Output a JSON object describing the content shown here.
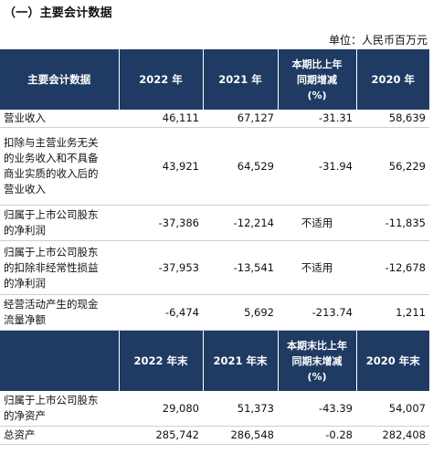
{
  "section_title": "（一）主要会计数据",
  "unit_note": "单位：人民币百万元",
  "header1": {
    "label": "主要会计数据",
    "col1": "2022 年",
    "col2": "2021 年",
    "col3_line1": "本期比上年",
    "col3_line2": "同期增减",
    "col3_line3": "(%)",
    "col4": "2020 年"
  },
  "rows1": [
    {
      "label_lines": [
        "营业收入"
      ],
      "v2022": "46,111",
      "v2021": "67,127",
      "change": "-31.31",
      "v2020": "58,639"
    },
    {
      "label_lines": [
        "扣除与主营业务无关",
        "的业务收入和不具备",
        "商业实质的收入后的",
        "营业收入"
      ],
      "v2022": "43,921",
      "v2021": "64,529",
      "change": "-31.94",
      "v2020": "56,229"
    },
    {
      "label_lines": [
        "归属于上市公司股东",
        "的净利润"
      ],
      "v2022": "-37,386",
      "v2021": "-12,214",
      "change": "不适用",
      "v2020": "-11,835"
    },
    {
      "label_lines": [
        "归属于上市公司股东",
        "的扣除非经常性损益",
        "的净利润"
      ],
      "v2022": "-37,953",
      "v2021": "-13,541",
      "change": "不适用",
      "v2020": "-12,678"
    },
    {
      "label_lines": [
        "经营活动产生的现金",
        "流量净额"
      ],
      "v2022": "-6,474",
      "v2021": "5,692",
      "change": "-213.74",
      "v2020": "1,211"
    }
  ],
  "header2": {
    "col1": "2022 年末",
    "col2": "2021 年末",
    "col3_line1": "本期末比上年",
    "col3_line2": "同期末增减",
    "col3_line3": "(%)",
    "col4": "2020 年末"
  },
  "rows2": [
    {
      "label_lines": [
        "归属于上市公司股东",
        "的净资产"
      ],
      "v2022": "29,080",
      "v2021": "51,373",
      "change": "-43.39",
      "v2020": "54,007"
    },
    {
      "label_lines": [
        "总资产"
      ],
      "v2022": "285,742",
      "v2021": "286,548",
      "change": "-0.28",
      "v2020": "282,408"
    }
  ]
}
